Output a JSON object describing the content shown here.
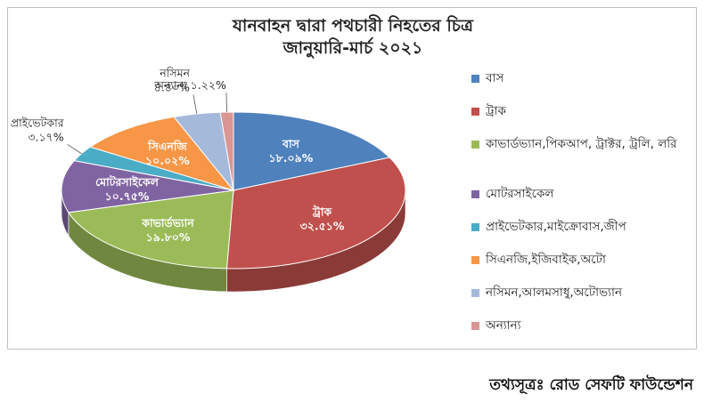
{
  "chart_data": {
    "type": "pie",
    "title": "যানবাহন দ্বারা পথচারী নিহতের চিত্র",
    "subtitle": "জানুয়ারি-মার্চ ২০২১",
    "legend_position": "right",
    "slices": [
      {
        "legend": "বাস",
        "label": "বাস",
        "value": 18.09,
        "display": "১৮.০৯%",
        "color": "#4f81bd"
      },
      {
        "legend": "ট্রাক",
        "label": "ট্রাক",
        "value": 32.51,
        "display": "৩২.৫১%",
        "color": "#c0504d"
      },
      {
        "legend": "কাভার্ডভ্যান,পিকআপ, ট্রাক্টর, ট্রলি, লরি",
        "label": "কাভার্ডভ্যান",
        "value": 19.8,
        "display": "১৯.৮০%",
        "color": "#9bbb59"
      },
      {
        "legend": "মোটরসাইকেল",
        "label": "মোটরসাইকেল",
        "value": 10.75,
        "display": "১০.৭৫%",
        "color": "#8064a2"
      },
      {
        "legend": "প্রাইভেটকার,মাইক্রোবাস,জীপ",
        "label": "প্রাইভেটকার",
        "value": 3.17,
        "display": "৩.১৭%",
        "color": "#4bacc6"
      },
      {
        "legend": "সিএনজি,ইজিবাইক,অটো",
        "label": "সিএনজি",
        "value": 10.02,
        "display": "১০.০২%",
        "color": "#f79646"
      },
      {
        "legend": "নসিমন,আলমসাধু,অটোভ্যান",
        "label": "নসিমন",
        "value": 4.4,
        "display": "৪.৪০%",
        "color": "#a5b9db"
      },
      {
        "legend": "অন্যান্য",
        "label": "অন্যান্য",
        "value": 1.22,
        "display": "১.২২%",
        "color": "#d99694"
      }
    ]
  },
  "source": "তথ্যসূত্রঃ রোড সেফটি ফাউন্ডেশন"
}
